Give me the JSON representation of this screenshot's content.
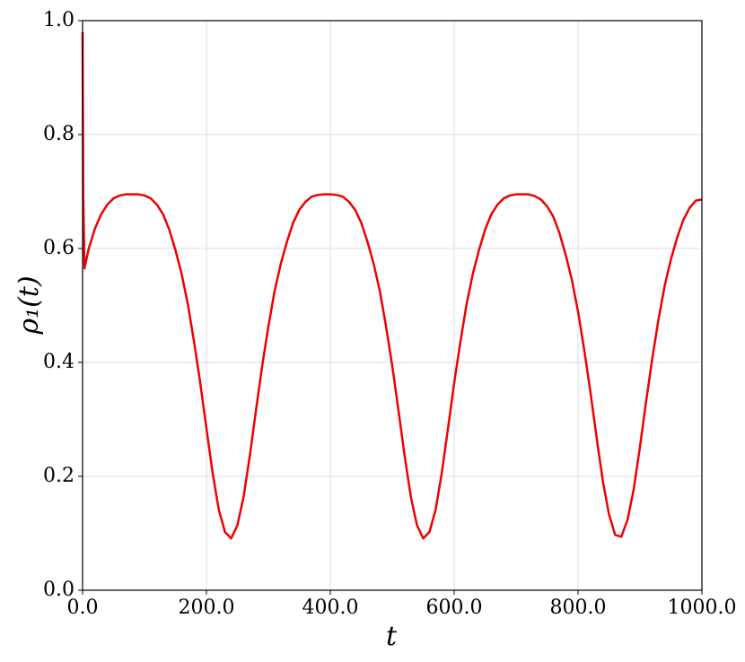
{
  "chart_data": {
    "type": "line",
    "x_label": "t",
    "y_label": "ρ₁(t)",
    "x": [
      0,
      1,
      3,
      10,
      20,
      30,
      40,
      50,
      60,
      70,
      80,
      90,
      100,
      110,
      120,
      130,
      140,
      150,
      160,
      170,
      180,
      190,
      200,
      210,
      220,
      230,
      240,
      250,
      260,
      270,
      280,
      290,
      300,
      310,
      320,
      330,
      340,
      350,
      360,
      370,
      380,
      390,
      400,
      410,
      420,
      430,
      440,
      450,
      460,
      470,
      480,
      490,
      500,
      510,
      520,
      530,
      540,
      550,
      560,
      570,
      580,
      590,
      600,
      610,
      620,
      630,
      640,
      650,
      660,
      670,
      680,
      690,
      700,
      710,
      720,
      730,
      740,
      750,
      760,
      770,
      780,
      790,
      800,
      810,
      820,
      830,
      840,
      850,
      860,
      870,
      880,
      890,
      900,
      910,
      920,
      930,
      940,
      950,
      960,
      970,
      980,
      990,
      1000
    ],
    "values": [
      0.98,
      0.7,
      0.565,
      0.6,
      0.635,
      0.66,
      0.677,
      0.688,
      0.693,
      0.695,
      0.695,
      0.695,
      0.693,
      0.688,
      0.677,
      0.66,
      0.633,
      0.597,
      0.555,
      0.502,
      0.436,
      0.364,
      0.284,
      0.206,
      0.141,
      0.102,
      0.091,
      0.114,
      0.164,
      0.236,
      0.316,
      0.394,
      0.463,
      0.525,
      0.573,
      0.612,
      0.645,
      0.668,
      0.682,
      0.691,
      0.694,
      0.695,
      0.695,
      0.694,
      0.691,
      0.682,
      0.668,
      0.645,
      0.612,
      0.573,
      0.525,
      0.463,
      0.394,
      0.316,
      0.236,
      0.164,
      0.114,
      0.091,
      0.102,
      0.141,
      0.206,
      0.284,
      0.364,
      0.436,
      0.502,
      0.555,
      0.597,
      0.633,
      0.66,
      0.677,
      0.688,
      0.693,
      0.695,
      0.695,
      0.695,
      0.692,
      0.686,
      0.674,
      0.656,
      0.627,
      0.589,
      0.545,
      0.489,
      0.422,
      0.348,
      0.268,
      0.192,
      0.133,
      0.097,
      0.094,
      0.124,
      0.178,
      0.252,
      0.332,
      0.408,
      0.476,
      0.535,
      0.581,
      0.619,
      0.65,
      0.671,
      0.684,
      0.686
    ],
    "color": "#ee0000",
    "xlim": [
      0,
      1000
    ],
    "xticks": [
      {
        "value": 0,
        "label": "0.0"
      },
      {
        "value": 200,
        "label": "200.0"
      },
      {
        "value": 400,
        "label": "400.0"
      },
      {
        "value": 600,
        "label": "600.0"
      },
      {
        "value": 800,
        "label": "800.0"
      },
      {
        "value": 1000,
        "label": "1000.0"
      }
    ],
    "ylim": [
      0,
      1
    ],
    "yticks": [
      {
        "value": 0,
        "label": "0.0"
      },
      0.2,
      0.4,
      0.6,
      0.8,
      {
        "value": 1,
        "label": "1.0"
      }
    ],
    "grid": true
  }
}
